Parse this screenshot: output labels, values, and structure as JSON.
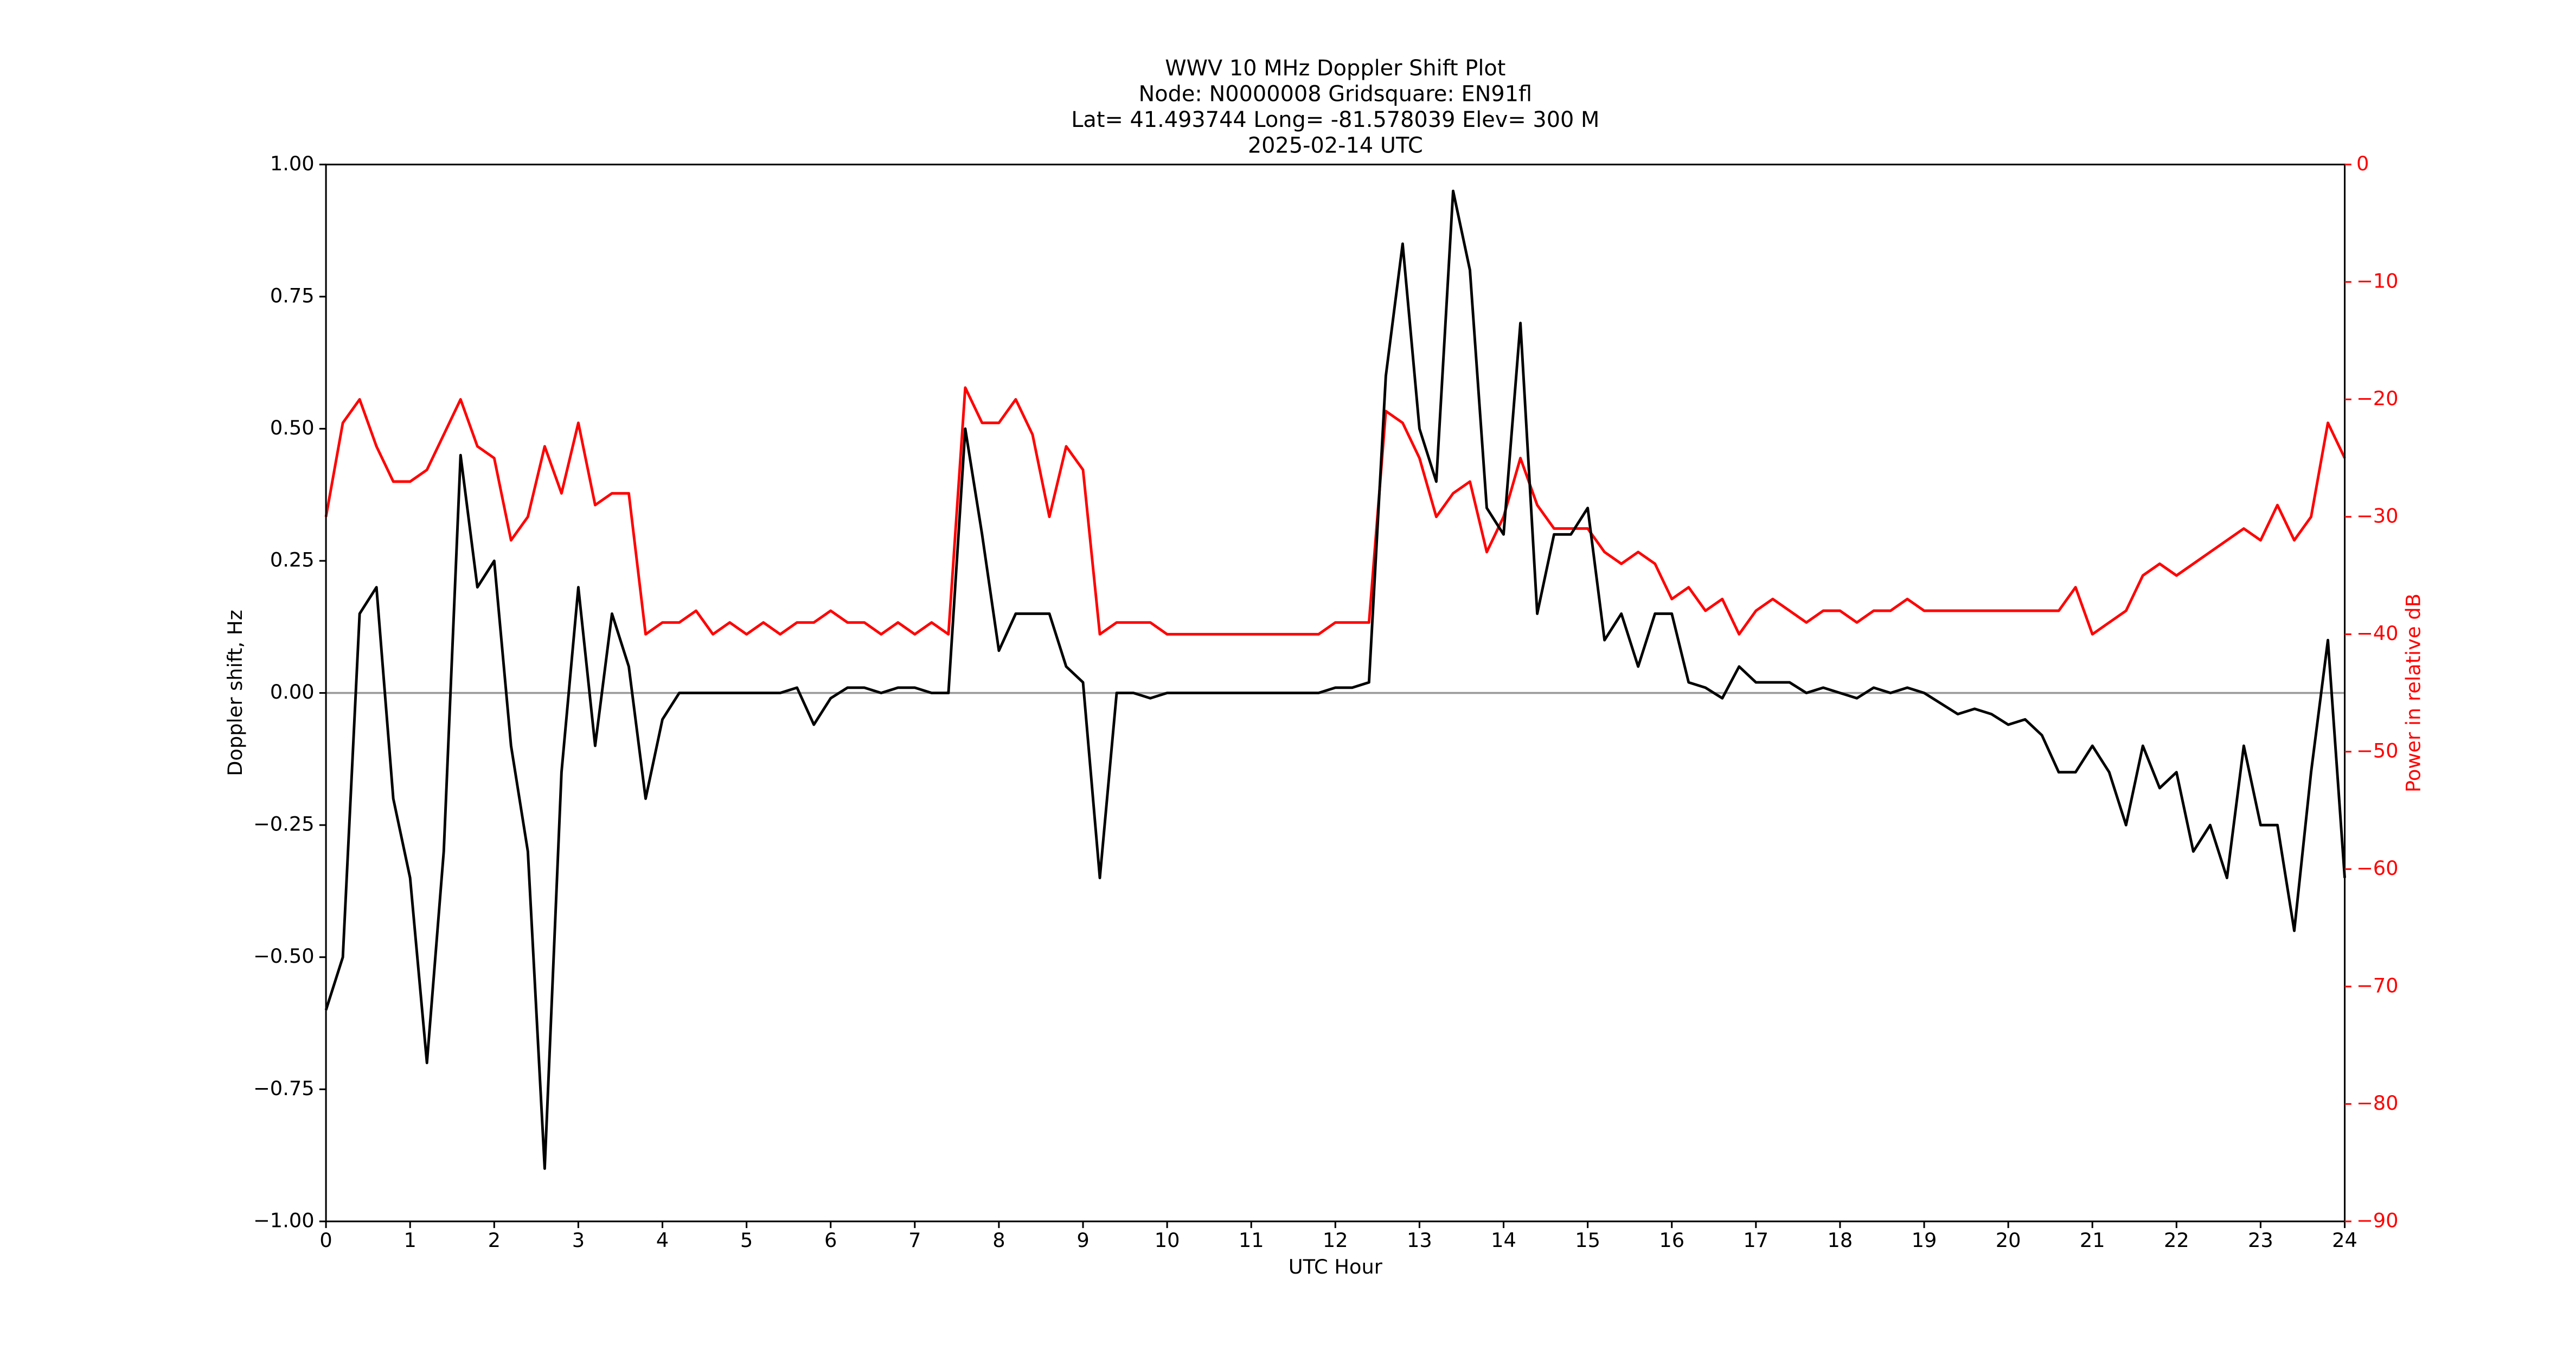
{
  "chart_data": {
    "type": "line",
    "title": [
      "WWV 10 MHz Doppler Shift Plot",
      "Node:  N0000008     Gridsquare:  EN91fl",
      "Lat= 41.493744    Long=  -81.578039    Elev=  300 M",
      "2025-02-14  UTC"
    ],
    "xlabel": "UTC Hour",
    "ylabel": "Doppler shift, Hz",
    "y2label": "Power in relative dB",
    "xlim": [
      0,
      24
    ],
    "xticks": [
      0,
      1,
      2,
      3,
      4,
      5,
      6,
      7,
      8,
      9,
      10,
      11,
      12,
      13,
      14,
      15,
      16,
      17,
      18,
      19,
      20,
      21,
      22,
      23,
      24
    ],
    "ylim": [
      -1,
      1
    ],
    "yticks": [
      {
        "value": -1,
        "label": "−1.00"
      },
      {
        "value": -0.75,
        "label": "−0.75"
      },
      {
        "value": -0.5,
        "label": "−0.50"
      },
      {
        "value": -0.25,
        "label": "−0.25"
      },
      {
        "value": 0,
        "label": "0.00"
      },
      {
        "value": 0.25,
        "label": "0.25"
      },
      {
        "value": 0.5,
        "label": "0.50"
      },
      {
        "value": 0.75,
        "label": "0.75"
      },
      {
        "value": 1,
        "label": "1.00"
      }
    ],
    "y2lim": [
      -90,
      0
    ],
    "y2ticks": [
      {
        "value": -90,
        "label": "−90"
      },
      {
        "value": -80,
        "label": "−80"
      },
      {
        "value": -70,
        "label": "−70"
      },
      {
        "value": -60,
        "label": "−60"
      },
      {
        "value": -50,
        "label": "−50"
      },
      {
        "value": -40,
        "label": "−40"
      },
      {
        "value": -30,
        "label": "−30"
      },
      {
        "value": -20,
        "label": "−20"
      },
      {
        "value": -10,
        "label": "−10"
      },
      0
    ],
    "y2color": "#ff0000",
    "hline": 0,
    "hline_color": "#999999",
    "x": [
      0,
      0.2,
      0.4,
      0.6,
      0.8,
      1,
      1.2,
      1.4,
      1.6,
      1.8,
      2,
      2.2,
      2.4,
      2.6,
      2.8,
      3,
      3.2,
      3.4,
      3.6,
      3.8,
      4,
      4.2,
      4.4,
      4.6,
      4.8,
      5,
      5.2,
      5.4,
      5.6,
      5.8,
      6,
      6.2,
      6.4,
      6.6,
      6.8,
      7,
      7.2,
      7.4,
      7.6,
      7.8,
      8,
      8.2,
      8.4,
      8.6,
      8.8,
      9,
      9.2,
      9.4,
      9.6,
      9.8,
      10,
      10.2,
      10.4,
      10.6,
      10.8,
      11,
      11.2,
      11.4,
      11.6,
      11.8,
      12,
      12.2,
      12.4,
      12.6,
      12.8,
      13,
      13.2,
      13.4,
      13.6,
      13.8,
      14,
      14.2,
      14.4,
      14.6,
      14.8,
      15,
      15.2,
      15.4,
      15.6,
      15.8,
      16,
      16.2,
      16.4,
      16.6,
      16.8,
      17,
      17.2,
      17.4,
      17.6,
      17.8,
      18,
      18.2,
      18.4,
      18.6,
      18.8,
      19,
      19.2,
      19.4,
      19.6,
      19.8,
      20,
      20.2,
      20.4,
      20.6,
      20.8,
      21,
      21.2,
      21.4,
      21.6,
      21.8,
      22,
      22.2,
      22.4,
      22.6,
      22.8,
      23,
      23.2,
      23.4,
      23.6,
      23.8,
      24
    ],
    "series": [
      {
        "color": "#ff0000",
        "axis": "y2",
        "values": [
          -30,
          -22,
          -20,
          -24,
          -27,
          -27,
          -26,
          -23,
          -20,
          -24,
          -25,
          -32,
          -30,
          -24,
          -28,
          -22,
          -29,
          -28,
          -28,
          -40,
          -39,
          -39,
          -38,
          -40,
          -39,
          -40,
          -39,
          -40,
          -39,
          -39,
          -38,
          -39,
          -39,
          -40,
          -39,
          -40,
          -39,
          -40,
          -19,
          -22,
          -22,
          -20,
          -23,
          -30,
          -24,
          -26,
          -40,
          -39,
          -39,
          -39,
          -40,
          -40,
          -40,
          -40,
          -40,
          -40,
          -40,
          -40,
          -40,
          -40,
          -39,
          -39,
          -39,
          -21,
          -22,
          -25,
          -30,
          -28,
          -27,
          -33,
          -30,
          -25,
          -29,
          -31,
          -31,
          -31,
          -33,
          -34,
          -33,
          -34,
          -37,
          -36,
          -38,
          -37,
          -40,
          -38,
          -37,
          -38,
          -39,
          -38,
          -38,
          -39,
          -38,
          -38,
          -37,
          -38,
          -38,
          -38,
          -38,
          -38,
          -38,
          -38,
          -38,
          -38,
          -36,
          -40,
          -39,
          -38,
          -35,
          -34,
          -35,
          -34,
          -33,
          -32,
          -31,
          -32,
          -29,
          -32,
          -30,
          -22,
          -25
        ]
      },
      {
        "color": "#000000",
        "values": [
          -0.6,
          -0.5,
          0.15,
          0.2,
          -0.2,
          -0.35,
          -0.7,
          -0.3,
          0.45,
          0.2,
          0.25,
          -0.1,
          -0.3,
          -0.9,
          -0.15,
          0.2,
          -0.1,
          0.15,
          0.05,
          -0.2,
          -0.05,
          0,
          0,
          0,
          0,
          0,
          0,
          0,
          0.01,
          -0.06,
          -0.01,
          0.01,
          0.01,
          0,
          0.01,
          0.01,
          0,
          0,
          0.5,
          0.3,
          0.08,
          0.15,
          0.15,
          0.15,
          0.05,
          0.02,
          -0.35,
          0,
          0,
          -0.01,
          0,
          0,
          0,
          0,
          0,
          0,
          0,
          0,
          0,
          0,
          0.01,
          0.01,
          0.02,
          0.6,
          0.85,
          0.5,
          0.4,
          0.95,
          0.8,
          0.35,
          0.3,
          0.7,
          0.15,
          0.3,
          0.3,
          0.35,
          0.1,
          0.15,
          0.05,
          0.15,
          0.15,
          0.02,
          0.01,
          -0.01,
          0.05,
          0.02,
          0.02,
          0.02,
          0,
          0.01,
          0,
          -0.01,
          0.01,
          0,
          0.01,
          0,
          -0.02,
          -0.04,
          -0.03,
          -0.04,
          -0.06,
          -0.05,
          -0.08,
          -0.15,
          -0.15,
          -0.1,
          -0.15,
          -0.25,
          -0.1,
          -0.18,
          -0.15,
          -0.3,
          -0.25,
          -0.35,
          -0.1,
          -0.25,
          -0.25,
          -0.45,
          -0.15,
          0.1,
          -0.35
        ]
      }
    ]
  }
}
